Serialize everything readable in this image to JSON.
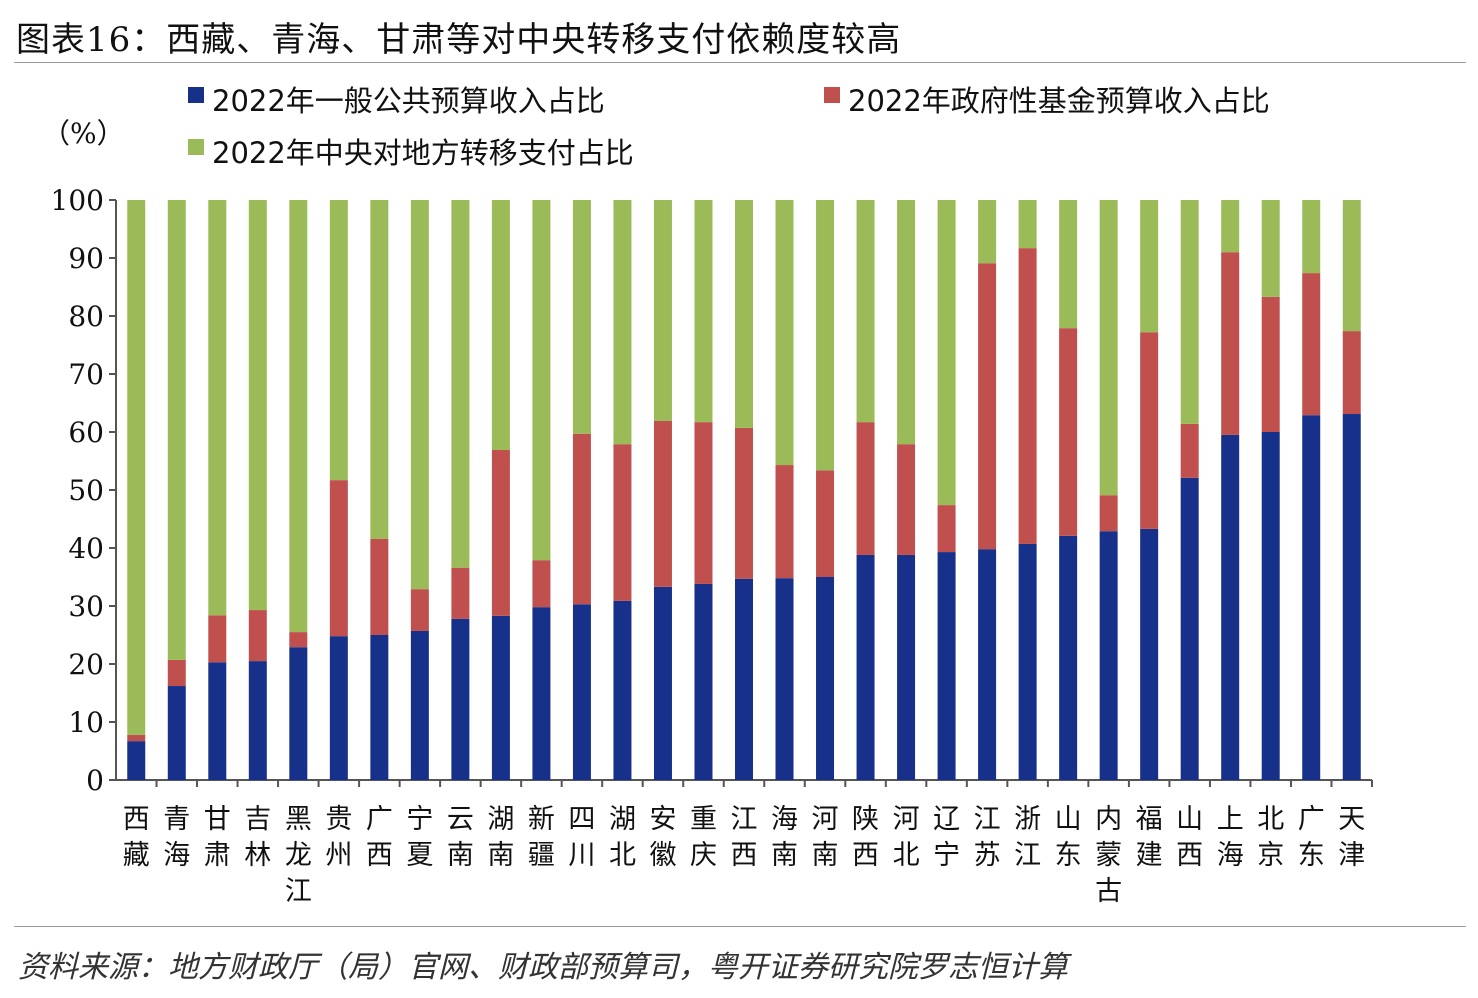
{
  "title": "图表16：西藏、青海、甘肃等对中央转移支付依赖度较高",
  "source": "资料来源：地方财政厅（局）官网、财政部预算司，粤开证券研究院罗志恒计算",
  "chart_data": {
    "type": "bar",
    "stacked": true,
    "title": "西藏、青海、甘肃等对中央转移支付依赖度较高",
    "ylabel": "（%）",
    "xlabel": "",
    "ylim": [
      0,
      100
    ],
    "y_ticks": [
      0,
      10,
      20,
      30,
      40,
      50,
      60,
      70,
      80,
      90,
      100
    ],
    "legend_position": "top",
    "categories": [
      "西藏",
      "青海",
      "甘肃",
      "吉林",
      "黑龙江",
      "贵州",
      "广西",
      "宁夏",
      "云南",
      "湖南",
      "新疆",
      "四川",
      "湖北",
      "安徽",
      "重庆",
      "江西",
      "海南",
      "河南",
      "陕西",
      "河北",
      "辽宁",
      "江苏",
      "浙江",
      "山东",
      "内蒙古",
      "福建",
      "山西",
      "上海",
      "北京",
      "广东",
      "天津"
    ],
    "series": [
      {
        "name": "2022年一般公共预算收入占比",
        "color": "#17318A",
        "values": [
          6.7,
          16.2,
          20.3,
          20.5,
          22.9,
          24.8,
          25.0,
          25.7,
          27.8,
          28.3,
          29.8,
          30.3,
          30.9,
          33.3,
          33.8,
          34.7,
          34.8,
          35.0,
          38.8,
          38.8,
          39.3,
          39.8,
          40.7,
          42.1,
          42.9,
          43.3,
          52.1,
          59.5,
          60.0,
          62.9,
          63.1
        ]
      },
      {
        "name": "2022年政府性基金预算收入占比",
        "color": "#C0504D",
        "values": [
          1.1,
          4.5,
          8.1,
          8.8,
          2.6,
          26.9,
          16.6,
          7.2,
          8.8,
          28.6,
          8.1,
          29.4,
          27.0,
          28.6,
          27.9,
          26.0,
          19.5,
          18.4,
          22.9,
          19.1,
          8.1,
          49.3,
          51.0,
          35.8,
          6.2,
          33.9,
          9.3,
          31.5,
          23.3,
          24.5,
          14.3
        ]
      },
      {
        "name": "2022年中央对地方转移支付占比",
        "color": "#9BBB59",
        "values": [
          92.2,
          79.3,
          71.6,
          70.7,
          74.5,
          48.3,
          58.4,
          67.1,
          63.4,
          43.1,
          62.1,
          40.3,
          42.1,
          38.1,
          38.3,
          39.3,
          45.7,
          46.6,
          38.3,
          42.1,
          52.6,
          10.9,
          8.3,
          22.1,
          50.9,
          22.8,
          38.6,
          9.0,
          16.7,
          12.6,
          22.6
        ]
      }
    ]
  }
}
